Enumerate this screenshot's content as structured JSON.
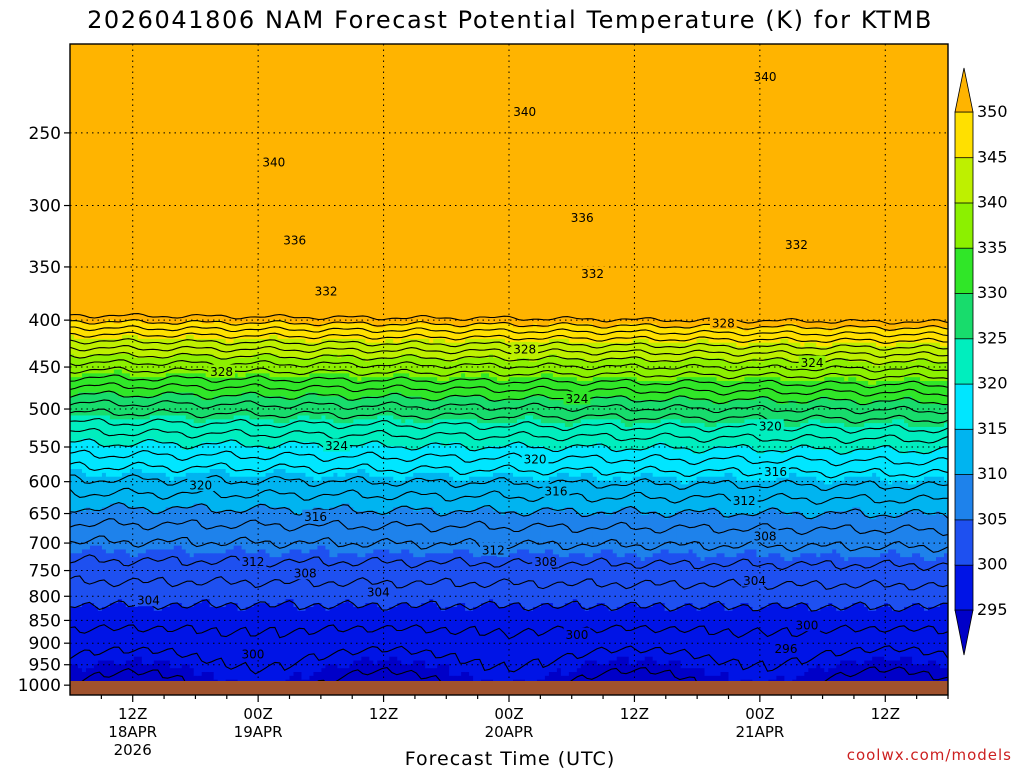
{
  "chart_data": {
    "type": "contour",
    "title": "2026041806 NAM Forecast Potential Temperature (K) for KTMB",
    "xlabel": "Forecast Time (UTC)",
    "ylabel": "",
    "credit": "coolwx.com/models",
    "x_axis_unit": "hours since 2026-04-18 06Z",
    "xlim": [
      0,
      84
    ],
    "ylim": [
      1025,
      200
    ],
    "y_scale": "log-pressure",
    "y_ticks": [
      250,
      300,
      350,
      400,
      450,
      500,
      550,
      600,
      650,
      700,
      750,
      800,
      850,
      900,
      950,
      1000
    ],
    "x_ticks": [
      {
        "hour": 6,
        "line1": "12Z",
        "line2": "18APR",
        "line3": "2026"
      },
      {
        "hour": 18,
        "line1": "00Z",
        "line2": "19APR",
        "line3": ""
      },
      {
        "hour": 30,
        "line1": "12Z",
        "line2": "",
        "line3": ""
      },
      {
        "hour": 42,
        "line1": "00Z",
        "line2": "20APR",
        "line3": ""
      },
      {
        "hour": 54,
        "line1": "12Z",
        "line2": "",
        "line3": ""
      },
      {
        "hour": 66,
        "line1": "00Z",
        "line2": "21APR",
        "line3": ""
      },
      {
        "hour": 78,
        "line1": "12Z",
        "line2": "",
        "line3": ""
      }
    ],
    "grid": true,
    "colorbar": {
      "levels": [
        295,
        300,
        305,
        310,
        315,
        320,
        325,
        330,
        335,
        340,
        345,
        350
      ],
      "colors": [
        "#0000c8",
        "#0014e6",
        "#1e50f0",
        "#1e82eb",
        "#00b4f0",
        "#00e6ff",
        "#00eebe",
        "#18dc6c",
        "#30e628",
        "#8cf000",
        "#bef000",
        "#ffe000",
        "#ffb400"
      ],
      "labels": [
        "295",
        "300",
        "305",
        "310",
        "315",
        "320",
        "325",
        "330",
        "335",
        "340",
        "345",
        "350"
      ]
    },
    "contour_interval_K": 2,
    "contour_labels": [
      {
        "hour": 3.3,
        "p": 1000,
        "label": ""
      },
      {
        "hour": 17.5,
        "p": 925,
        "label": "300"
      },
      {
        "hour": 48.5,
        "p": 881,
        "label": "300"
      },
      {
        "hour": 70.5,
        "p": 860,
        "label": "300"
      },
      {
        "hour": 68.5,
        "p": 912,
        "label": "296"
      },
      {
        "hour": 7.5,
        "p": 808,
        "label": "304"
      },
      {
        "hour": 29.5,
        "p": 791,
        "label": "304"
      },
      {
        "hour": 65.5,
        "p": 769,
        "label": "304"
      },
      {
        "hour": 22.5,
        "p": 755,
        "label": "308"
      },
      {
        "hour": 45.5,
        "p": 733,
        "label": "308"
      },
      {
        "hour": 66.5,
        "p": 688,
        "label": "308"
      },
      {
        "hour": 17.5,
        "p": 733,
        "label": "312"
      },
      {
        "hour": 40.5,
        "p": 712,
        "label": "312"
      },
      {
        "hour": 64.5,
        "p": 629,
        "label": "312"
      },
      {
        "hour": 23.5,
        "p": 655,
        "label": "316"
      },
      {
        "hour": 46.5,
        "p": 614,
        "label": "316"
      },
      {
        "hour": 67.5,
        "p": 585,
        "label": "316"
      },
      {
        "hour": 12.5,
        "p": 605,
        "label": "320"
      },
      {
        "hour": 44.5,
        "p": 567,
        "label": "320"
      },
      {
        "hour": 67.0,
        "p": 522,
        "label": "320"
      },
      {
        "hour": 25.5,
        "p": 548,
        "label": "324"
      },
      {
        "hour": 48.5,
        "p": 487,
        "label": "324"
      },
      {
        "hour": 71.0,
        "p": 445,
        "label": "324"
      },
      {
        "hour": 14.5,
        "p": 455,
        "label": "328"
      },
      {
        "hour": 43.5,
        "p": 430,
        "label": "328"
      },
      {
        "hour": 62.5,
        "p": 403,
        "label": "328"
      },
      {
        "hour": 24.5,
        "p": 372,
        "label": "332"
      },
      {
        "hour": 50.0,
        "p": 356,
        "label": "332"
      },
      {
        "hour": 69.5,
        "p": 331,
        "label": "332"
      },
      {
        "hour": 21.5,
        "p": 327,
        "label": "336"
      },
      {
        "hour": 49.0,
        "p": 309,
        "label": "336"
      },
      {
        "hour": 19.5,
        "p": 269,
        "label": "340"
      },
      {
        "hour": 43.5,
        "p": 237,
        "label": "340"
      },
      {
        "hour": 66.5,
        "p": 217,
        "label": "340"
      }
    ]
  }
}
